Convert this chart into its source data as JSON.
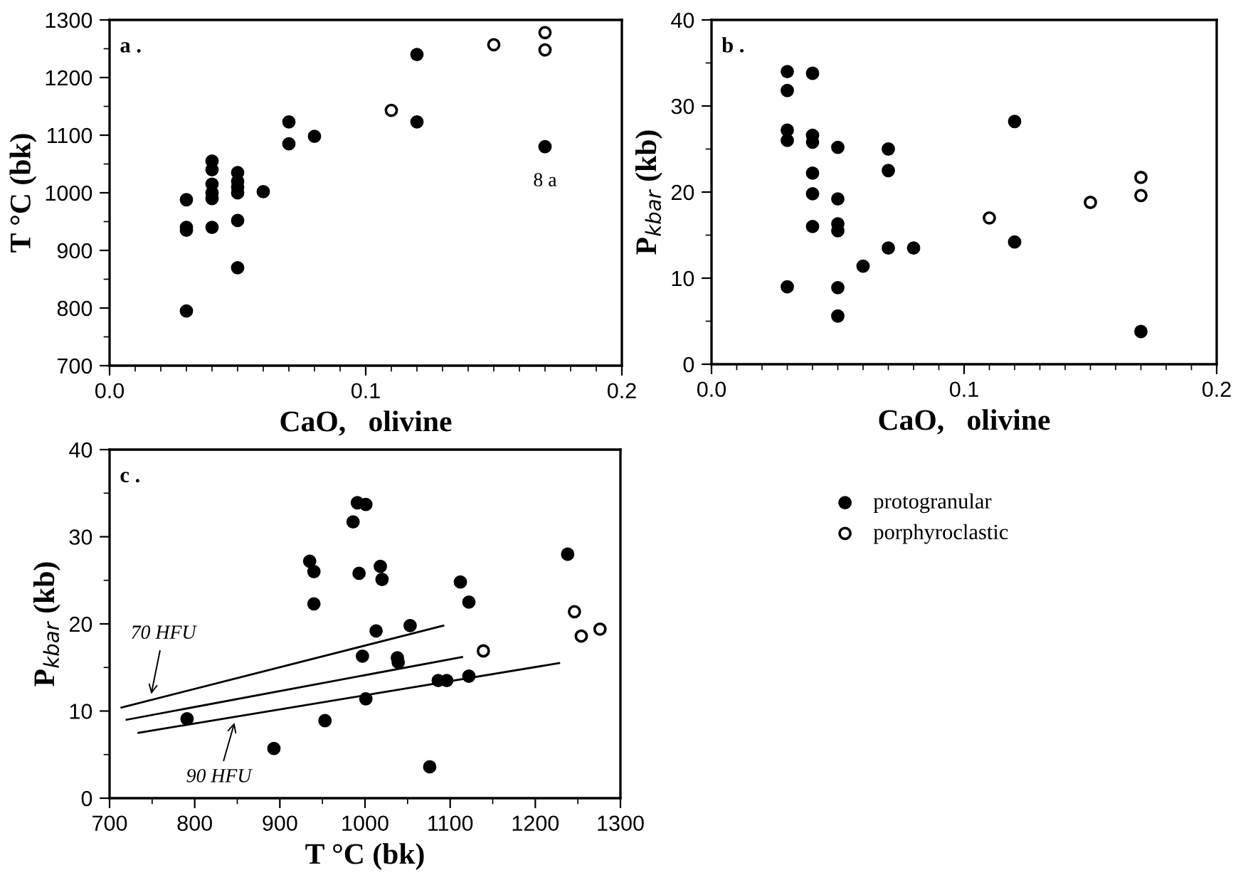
{
  "chart_data": [
    {
      "type": "scatter",
      "xlabel": "CaO,   olivine",
      "ylabel": "T °C (bk)",
      "annotations": [
        "a .",
        {
          "text": "8 a",
          "x": 0.17,
          "y": 1080
        }
      ],
      "xlim": [
        0,
        0.2
      ],
      "ylim": [
        700,
        1300
      ],
      "xticks": [
        {
          "value": 0,
          "label": "0.0"
        },
        {
          "value": 0.01,
          "label": null
        },
        {
          "value": 0.02,
          "label": null
        },
        {
          "value": 0.03,
          "label": null
        },
        {
          "value": 0.04,
          "label": null
        },
        {
          "value": 0.05,
          "label": null
        },
        {
          "value": 0.06,
          "label": null
        },
        {
          "value": 0.07,
          "label": null
        },
        {
          "value": 0.08,
          "label": null
        },
        {
          "value": 0.09,
          "label": null
        },
        0.1,
        {
          "value": 0.11,
          "label": null
        },
        {
          "value": 0.12,
          "label": null
        },
        {
          "value": 0.13,
          "label": null
        },
        {
          "value": 0.14,
          "label": null
        },
        {
          "value": 0.15,
          "label": null
        },
        {
          "value": 0.16,
          "label": null
        },
        {
          "value": 0.17,
          "label": null
        },
        {
          "value": 0.18,
          "label": null
        },
        {
          "value": 0.19,
          "label": null
        },
        0.2
      ],
      "yticks": [
        700,
        {
          "value": 750,
          "label": null
        },
        800,
        {
          "value": 850,
          "label": null
        },
        900,
        {
          "value": 950,
          "label": null
        },
        1000,
        {
          "value": 1050,
          "label": null
        },
        1100,
        {
          "value": 1150,
          "label": null
        },
        1200,
        {
          "value": 1250,
          "label": null
        },
        1300
      ],
      "grid": false,
      "marker": "circle",
      "series": [
        {
          "color": "#000000",
          "x": [
            0.03,
            0.03,
            0.03,
            0.03,
            0.04,
            0.04,
            0.04,
            0.04,
            0.04,
            0.04,
            0.05,
            0.05,
            0.05,
            0.05,
            0.05,
            0.05,
            0.06,
            0.07,
            0.07,
            0.08,
            0.12,
            0.12,
            0.17
          ],
          "values": [
            988,
            940,
            935,
            795,
            1055,
            1040,
            1015,
            1000,
            990,
            940,
            1035,
            1020,
            1010,
            1000,
            952,
            870,
            1002,
            1123,
            1085,
            1098,
            1240,
            1123,
            1080
          ]
        },
        {
          "color": "#ffffff",
          "x": [
            0.11,
            0.15,
            0.17,
            0.17
          ],
          "values": [
            1143,
            1257,
            1278,
            1248
          ]
        }
      ]
    },
    {
      "type": "scatter",
      "xlabel": "CaO,   olivine",
      "ylabel": "P$_{kbar}$ (kb)",
      "annotations": [
        "b ."
      ],
      "xlim": [
        0,
        0.2
      ],
      "ylim": [
        0,
        40
      ],
      "xticks": [
        {
          "value": 0,
          "label": "0.0"
        },
        {
          "value": 0.01,
          "label": null
        },
        {
          "value": 0.02,
          "label": null
        },
        {
          "value": 0.03,
          "label": null
        },
        {
          "value": 0.04,
          "label": null
        },
        {
          "value": 0.05,
          "label": null
        },
        {
          "value": 0.06,
          "label": null
        },
        {
          "value": 0.07,
          "label": null
        },
        {
          "value": 0.08,
          "label": null
        },
        {
          "value": 0.09,
          "label": null
        },
        0.1,
        {
          "value": 0.11,
          "label": null
        },
        {
          "value": 0.12,
          "label": null
        },
        {
          "value": 0.13,
          "label": null
        },
        {
          "value": 0.14,
          "label": null
        },
        {
          "value": 0.15,
          "label": null
        },
        {
          "value": 0.16,
          "label": null
        },
        {
          "value": 0.17,
          "label": null
        },
        {
          "value": 0.18,
          "label": null
        },
        {
          "value": 0.19,
          "label": null
        },
        0.2
      ],
      "yticks": [
        0,
        {
          "value": 5,
          "label": null
        },
        10,
        {
          "value": 15,
          "label": null
        },
        20,
        {
          "value": 25,
          "label": null
        },
        30,
        {
          "value": 35,
          "label": null
        },
        40
      ],
      "grid": false,
      "marker": "circle",
      "series": [
        {
          "color": "#000000",
          "x": [
            0.03,
            0.03,
            0.03,
            0.03,
            0.03,
            0.04,
            0.04,
            0.04,
            0.04,
            0.04,
            0.04,
            0.05,
            0.05,
            0.05,
            0.05,
            0.05,
            0.05,
            0.06,
            0.07,
            0.07,
            0.07,
            0.08,
            0.12,
            0.12,
            0.17
          ],
          "values": [
            34,
            31.8,
            27.2,
            26,
            9,
            33.8,
            26.6,
            25.8,
            22.2,
            19.8,
            16,
            25.2,
            19.2,
            16.3,
            15.5,
            8.9,
            5.6,
            11.4,
            25,
            22.5,
            13.5,
            13.5,
            28.2,
            14.2,
            3.8
          ]
        },
        {
          "color": "#ffffff",
          "x": [
            0.11,
            0.15,
            0.17,
            0.17
          ],
          "values": [
            17,
            18.8,
            21.7,
            19.6
          ]
        }
      ]
    },
    {
      "type": "scatter",
      "xlabel": "T °C (bk)",
      "ylabel": "P$_{kbar}$ (kb)",
      "annotations": [
        "c .",
        {
          "text": "70 HFU",
          "x": 748,
          "y": 11.5
        },
        {
          "text": "90 HFU",
          "x": 848,
          "y": 9.1
        }
      ],
      "xlim": [
        700,
        1300
      ],
      "ylim": [
        0,
        40
      ],
      "xticks": [
        700,
        {
          "value": 750,
          "label": null
        },
        800,
        {
          "value": 850,
          "label": null
        },
        900,
        {
          "value": 950,
          "label": null
        },
        1000,
        {
          "value": 1050,
          "label": null
        },
        1100,
        {
          "value": 1150,
          "label": null
        },
        1200,
        {
          "value": 1250,
          "label": null
        },
        1300
      ],
      "yticks": [
        0,
        {
          "value": 5,
          "label": null
        },
        10,
        {
          "value": 15,
          "label": null
        },
        20,
        {
          "value": 25,
          "label": null
        },
        30,
        {
          "value": 35,
          "label": null
        },
        40
      ],
      "grid": false,
      "marker": "circle",
      "legend": "right",
      "series": [
        {
          "name": "protogranular",
          "color": "#000000",
          "x": [
            791,
            893,
            953,
            935,
            940,
            940,
            986,
            991,
            1001,
            993,
            997,
            1001,
            1013,
            1018,
            1020,
            1038,
            1039,
            1053,
            1076,
            1086,
            1096,
            1112,
            1122,
            1122,
            1238
          ],
          "values": [
            9.1,
            5.7,
            8.9,
            27.2,
            26,
            22.3,
            31.7,
            33.9,
            33.7,
            25.8,
            16.3,
            11.4,
            19.2,
            26.6,
            25.1,
            16.1,
            15.6,
            19.8,
            3.6,
            13.5,
            13.5,
            24.8,
            22.5,
            14,
            28
          ]
        },
        {
          "name": "porphyroclastic",
          "color": "#ffffff",
          "x": [
            1139,
            1246,
            1254,
            1276
          ],
          "values": [
            16.9,
            21.4,
            18.6,
            19.4
          ]
        },
        {
          "type": "line",
          "marker": "none",
          "color": "#000000",
          "x": [
            714,
            1092
          ],
          "values": [
            10.4,
            19.8
          ]
        },
        {
          "type": "line",
          "marker": "none",
          "color": "#000000",
          "x": [
            720,
            1114
          ],
          "values": [
            9,
            16.2
          ]
        },
        {
          "type": "line",
          "marker": "none",
          "color": "#000000",
          "x": [
            734,
            1228
          ],
          "values": [
            7.5,
            15.5
          ]
        }
      ]
    }
  ]
}
